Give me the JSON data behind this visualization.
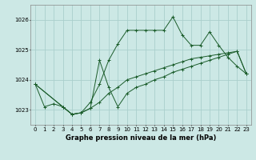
{
  "title": "Graphe pression niveau de la mer (hPa)",
  "bg_color": "#cce8e5",
  "grid_color": "#aacfcc",
  "line_color": "#1a5c2a",
  "xlim": [
    -0.5,
    23.5
  ],
  "ylim": [
    1022.5,
    1026.5
  ],
  "yticks": [
    1023,
    1024,
    1025,
    1026
  ],
  "xticks": [
    0,
    1,
    2,
    3,
    4,
    5,
    6,
    7,
    8,
    9,
    10,
    11,
    12,
    13,
    14,
    15,
    16,
    17,
    18,
    19,
    20,
    21,
    22,
    23
  ],
  "series1_x": [
    0,
    1,
    2,
    3,
    4,
    5,
    6,
    7,
    8,
    9,
    10,
    11,
    12,
    13,
    14,
    15,
    16,
    17,
    18,
    19,
    20,
    21,
    22,
    23
  ],
  "series1_y": [
    1023.85,
    1023.1,
    1023.2,
    1023.1,
    1022.85,
    1022.9,
    1023.05,
    1023.25,
    1023.55,
    1023.75,
    1024.0,
    1024.1,
    1024.2,
    1024.3,
    1024.4,
    1024.5,
    1024.6,
    1024.7,
    1024.75,
    1024.8,
    1024.85,
    1024.9,
    1024.95,
    1024.2
  ],
  "series2_x": [
    0,
    3,
    4,
    5,
    6,
    7,
    8,
    9,
    10,
    11,
    12,
    13,
    14,
    15,
    16,
    17,
    18,
    19,
    20,
    21,
    22,
    23
  ],
  "series2_y": [
    1023.85,
    1023.1,
    1022.85,
    1022.9,
    1023.25,
    1023.85,
    1024.65,
    1025.2,
    1025.65,
    1025.65,
    1025.65,
    1025.65,
    1025.65,
    1026.1,
    1025.5,
    1025.15,
    1025.15,
    1025.6,
    1025.15,
    1024.75,
    1024.45,
    1024.2
  ],
  "series3_x": [
    0,
    3,
    4,
    5,
    6,
    7,
    8,
    9,
    10,
    11,
    12,
    13,
    14,
    15,
    16,
    17,
    18,
    19,
    20,
    21,
    22,
    23
  ],
  "series3_y": [
    1023.85,
    1023.1,
    1022.85,
    1022.9,
    1023.05,
    1024.65,
    1023.75,
    1023.1,
    1023.55,
    1023.75,
    1023.85,
    1024.0,
    1024.1,
    1024.25,
    1024.35,
    1024.45,
    1024.55,
    1024.65,
    1024.75,
    1024.85,
    1024.95,
    1024.2
  ]
}
